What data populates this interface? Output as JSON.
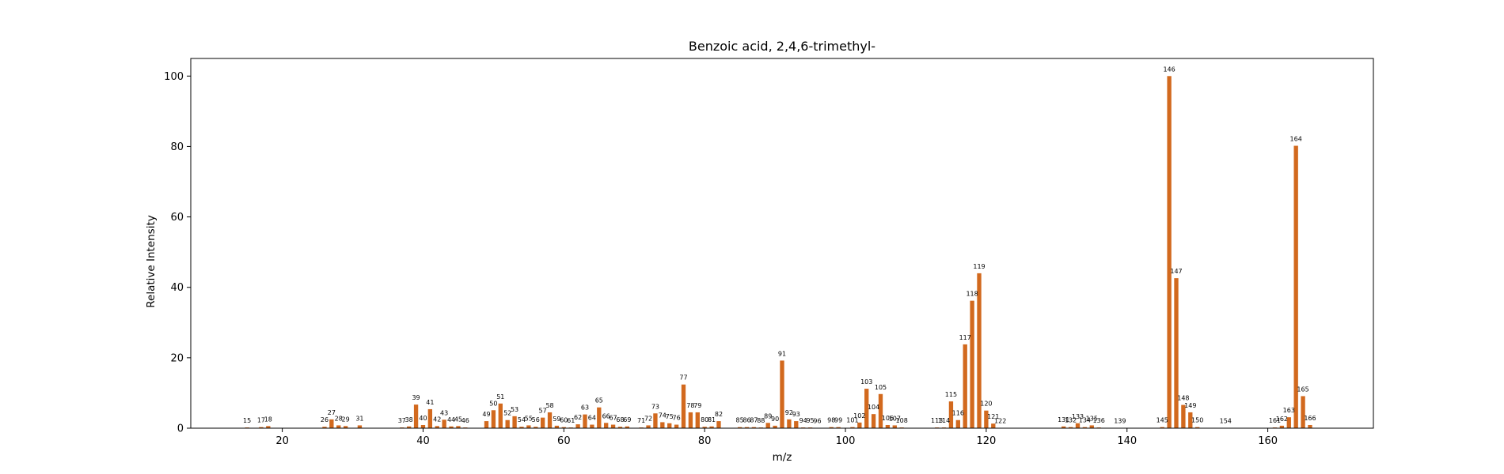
{
  "chart_data": {
    "type": "bar",
    "title": "Benzoic acid, 2,4,6-trimethyl-",
    "xlabel": "m/z",
    "ylabel": "Relative Intensity",
    "xlim": [
      7,
      175
    ],
    "ylim": [
      0,
      105
    ],
    "xticks": [
      20,
      40,
      60,
      80,
      100,
      120,
      140,
      160
    ],
    "yticks": [
      0,
      20,
      40,
      60,
      80,
      100
    ],
    "grid": false,
    "legend": "none",
    "bar_color": "#d2691e",
    "x": [
      15,
      17,
      18,
      26,
      27,
      28,
      29,
      31,
      37,
      38,
      39,
      40,
      41,
      42,
      43,
      44,
      45,
      46,
      49,
      50,
      51,
      52,
      53,
      54,
      55,
      56,
      57,
      58,
      59,
      60,
      61,
      62,
      63,
      64,
      65,
      66,
      67,
      68,
      69,
      71,
      72,
      73,
      74,
      75,
      76,
      77,
      78,
      79,
      80,
      81,
      82,
      85,
      86,
      87,
      88,
      89,
      90,
      91,
      92,
      93,
      94,
      95,
      96,
      98,
      99,
      101,
      102,
      103,
      104,
      105,
      106,
      107,
      108,
      113,
      114,
      115,
      116,
      117,
      118,
      119,
      120,
      121,
      122,
      131,
      132,
      133,
      134,
      135,
      136,
      139,
      145,
      146,
      147,
      148,
      149,
      150,
      154,
      161,
      162,
      163,
      164,
      165,
      166
    ],
    "values": [
      0.2,
      0.3,
      0.6,
      0.4,
      2.5,
      0.8,
      0.6,
      0.8,
      0.2,
      0.5,
      6.7,
      0.9,
      5.4,
      0.6,
      2.4,
      0.5,
      0.6,
      0.2,
      2.0,
      5.1,
      7.0,
      2.3,
      3.4,
      0.4,
      0.8,
      0.4,
      3.0,
      4.5,
      0.7,
      0.3,
      0.2,
      1.1,
      3.9,
      1.0,
      5.9,
      1.5,
      1.0,
      0.4,
      0.5,
      0.2,
      0.8,
      4.2,
      1.7,
      1.4,
      1.0,
      12.4,
      4.5,
      4.5,
      0.4,
      0.5,
      2.0,
      0.3,
      0.3,
      0.3,
      0.2,
      1.5,
      0.7,
      19.2,
      2.5,
      2.0,
      0.2,
      0.2,
      0.1,
      0.3,
      0.3,
      0.3,
      1.6,
      11.2,
      4.0,
      9.7,
      0.9,
      0.8,
      0.2,
      0.2,
      0.2,
      7.6,
      2.3,
      23.8,
      36.2,
      44.0,
      5.0,
      1.3,
      0.1,
      0.5,
      0.3,
      1.4,
      0.3,
      0.8,
      0.2,
      0.1,
      0.3,
      100.0,
      42.6,
      6.6,
      4.5,
      0.3,
      0.1,
      0.2,
      0.7,
      3.1,
      80.2,
      9.1,
      0.9
    ]
  }
}
